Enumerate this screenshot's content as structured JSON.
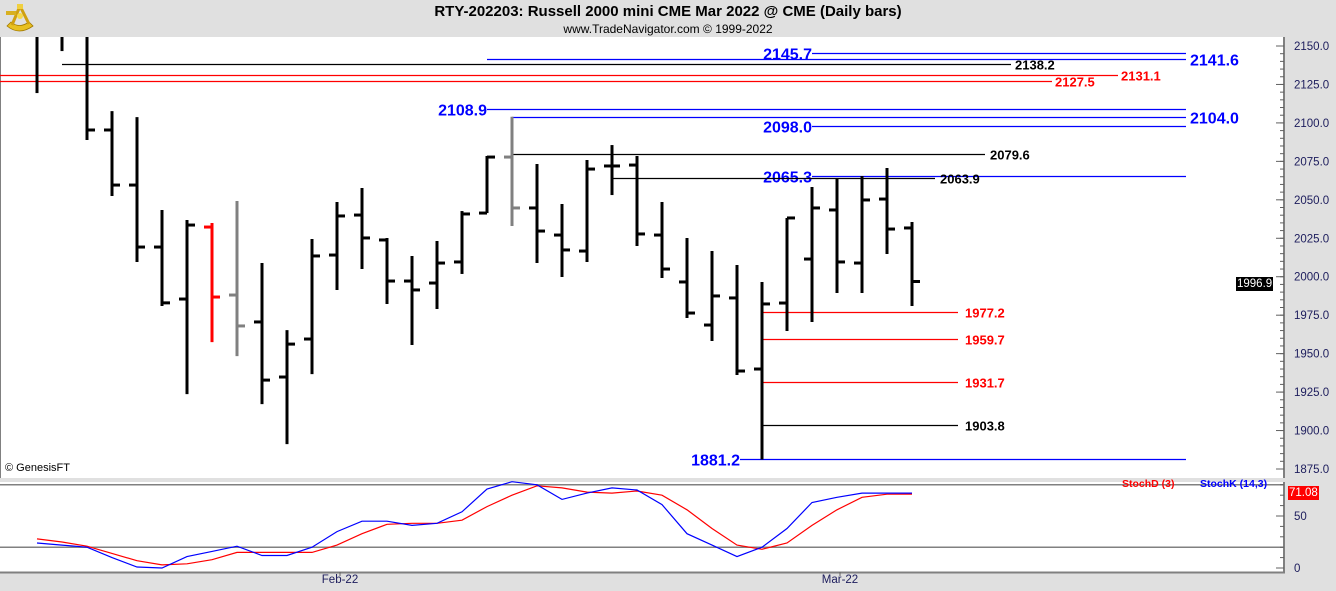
{
  "header": {
    "title": "RTY-202203:  Russell 2000 mini CME Mar 2022 @ CME  (Daily bars)",
    "subtitle": "www.TradeNavigator.com © 1999-2022",
    "logo_icon": "sextant-icon"
  },
  "copyright": "© GenesisFT",
  "price_axis": {
    "ticks": [
      "2150.0",
      "2125.0",
      "2100.0",
      "2075.0",
      "2050.0",
      "2025.0",
      "2000.0",
      "1975.0",
      "1950.0",
      "1925.0",
      "1900.0",
      "1875.0"
    ],
    "range": [
      1875,
      2150
    ],
    "last_price": "1996.9"
  },
  "stoch_axis": {
    "ticks": [
      "50",
      "0"
    ],
    "last_value": "71.08",
    "legend_d": "StochD (3)",
    "legend_k": "StochK (14,3)",
    "color_d": "#ff0000",
    "color_k": "#0000ff"
  },
  "date_labels": [
    {
      "label": "Feb-22",
      "bar": 12
    },
    {
      "label": "Mar-22",
      "bar": 32
    }
  ],
  "chart_data": {
    "type": "ohlc",
    "title": "RTY-202203 Daily bars",
    "bars": [
      {
        "o": null,
        "h": 2165,
        "l": 2119.4,
        "c": null
      },
      {
        "o": null,
        "h": 2165,
        "l": 2146.7,
        "c": null
      },
      {
        "o": null,
        "h": 2165,
        "l": 2088.9,
        "c": 2095.4
      },
      {
        "o": 2095.4,
        "h": 2107.7,
        "l": 2052.5,
        "c": 2059.6
      },
      {
        "o": 2059.6,
        "h": 2103.8,
        "l": 2009.6,
        "c": 2019.3
      },
      {
        "o": 2019.3,
        "h": 2043.4,
        "l": 1981.0,
        "c": 1983.0
      },
      {
        "o": 1985.5,
        "h": 2036.9,
        "l": 1923.7,
        "c": 2033.6
      },
      {
        "o": 2032.3,
        "h": 2034.9,
        "l": 1957.5,
        "c": 1986.8,
        "color": "#ff0000"
      },
      {
        "o": 1988.1,
        "h": 2049.2,
        "l": 1948.4,
        "c": 1968.0,
        "color": "#808080"
      },
      {
        "o": 1970.6,
        "h": 2008.9,
        "l": 1917.2,
        "c": 1932.8
      },
      {
        "o": 1934.8,
        "h": 1965.3,
        "l": 1891.2,
        "c": 1956.2
      },
      {
        "o": 1959.5,
        "h": 2024.5,
        "l": 1936.7,
        "c": 2013.5
      },
      {
        "o": 2014.1,
        "h": 2048.6,
        "l": 1991.4,
        "c": 2039.5
      },
      {
        "o": 2040.1,
        "h": 2057.7,
        "l": 2005.0,
        "c": 2025.2
      },
      {
        "o": 2023.9,
        "h": 2025.2,
        "l": 1982.3,
        "c": 1997.2
      },
      {
        "o": 1997.2,
        "h": 2013.5,
        "l": 1955.6,
        "c": 1991.4
      },
      {
        "o": 1995.9,
        "h": 2023.2,
        "l": 1979.0,
        "c": 2008.9
      },
      {
        "o": 2009.6,
        "h": 2042.7,
        "l": 2001.8,
        "c": 2040.8
      },
      {
        "o": 2041.4,
        "h": 2078.5,
        "l": 2041.4,
        "c": 2077.8
      },
      {
        "o": 2077.8,
        "h": 2104.0,
        "l": 2033.0,
        "c": 2044.7,
        "color": "#808080"
      },
      {
        "o": 2044.7,
        "h": 2073.3,
        "l": 2008.9,
        "c": 2029.7
      },
      {
        "o": 2027.1,
        "h": 2047.3,
        "l": 1999.8,
        "c": 2017.4
      },
      {
        "o": 2016.7,
        "h": 2075.9,
        "l": 2009.6,
        "c": 2070.0
      },
      {
        "o": 2072.0,
        "h": 2085.6,
        "l": 2053.1,
        "c": 2072.0
      },
      {
        "o": 2072.6,
        "h": 2078.5,
        "l": 2020.0,
        "c": 2027.8
      },
      {
        "o": 2027.1,
        "h": 2048.6,
        "l": 1999.2,
        "c": 2005.0
      },
      {
        "o": 1996.6,
        "h": 2025.2,
        "l": 1973.2,
        "c": 1976.4
      },
      {
        "o": 1968.6,
        "h": 2016.7,
        "l": 1958.2,
        "c": 1987.5
      },
      {
        "o": 1986.2,
        "h": 2007.6,
        "l": 1936.1,
        "c": 1938.7
      },
      {
        "o": 1940.0,
        "h": 1996.6,
        "l": 1881.2,
        "c": 1982.3
      },
      {
        "o": 1982.9,
        "h": 2038.2,
        "l": 1964.7,
        "c": 2038.2
      },
      {
        "o": 2011.5,
        "h": 2058.3,
        "l": 1970.6,
        "c": 2044.7
      },
      {
        "o": 2043.4,
        "h": 2064.2,
        "l": 1989.4,
        "c": 2009.6
      },
      {
        "o": 2008.9,
        "h": 2065.5,
        "l": 1989.4,
        "c": 2049.9
      },
      {
        "o": 2050.5,
        "h": 2070.7,
        "l": 2014.8,
        "c": 2031.0
      },
      {
        "o": 2031.7,
        "h": 2035.6,
        "l": 1981.0,
        "c": 1996.9
      }
    ],
    "levels": [
      {
        "label": "2145.7",
        "value": 2145.7,
        "color": "#0000ff"
      },
      {
        "label": "2141.6",
        "value": 2141.6,
        "color": "#0000ff"
      },
      {
        "label": "2138.2",
        "value": 2138.2,
        "color": "#000000"
      },
      {
        "label": "2131.1",
        "value": 2131.1,
        "color": "#ff0000"
      },
      {
        "label": "2127.5",
        "value": 2127.5,
        "color": "#ff0000"
      },
      {
        "label": "2108.9",
        "value": 2108.9,
        "color": "#0000ff"
      },
      {
        "label": "2104.0",
        "value": 2104.0,
        "color": "#0000ff"
      },
      {
        "label": "2098.0",
        "value": 2098.0,
        "color": "#0000ff"
      },
      {
        "label": "2079.6",
        "value": 2079.6,
        "color": "#000000"
      },
      {
        "label": "2065.3",
        "value": 2065.3,
        "color": "#0000ff"
      },
      {
        "label": "2063.9",
        "value": 2063.9,
        "color": "#000000"
      },
      {
        "label": "1977.2",
        "value": 1977.2,
        "color": "#ff0000"
      },
      {
        "label": "1959.7",
        "value": 1959.7,
        "color": "#ff0000"
      },
      {
        "label": "1931.7",
        "value": 1931.7,
        "color": "#ff0000"
      },
      {
        "label": "1903.8",
        "value": 1903.8,
        "color": "#000000"
      },
      {
        "label": "1881.2",
        "value": 1881.2,
        "color": "#0000ff"
      }
    ],
    "stoch_k": [
      24,
      22,
      20,
      10,
      1,
      0,
      11,
      16,
      21,
      12,
      12,
      20,
      35,
      45,
      45,
      41,
      43,
      54,
      76,
      83,
      80,
      66,
      72,
      77,
      75,
      61,
      33,
      22,
      11,
      20,
      38,
      63,
      68,
      72,
      72,
      72
    ],
    "stoch_d": [
      28,
      25,
      21,
      14,
      7,
      3,
      4,
      8,
      15,
      15,
      15,
      15,
      22,
      33,
      42,
      43,
      43,
      46,
      59,
      70,
      79,
      77,
      73,
      72,
      74,
      70,
      56,
      38,
      22,
      18,
      24,
      41,
      56,
      68,
      71,
      71.08
    ],
    "stoch_range": [
      0,
      100
    ],
    "stoch_reference_lines": [
      20,
      80
    ]
  }
}
